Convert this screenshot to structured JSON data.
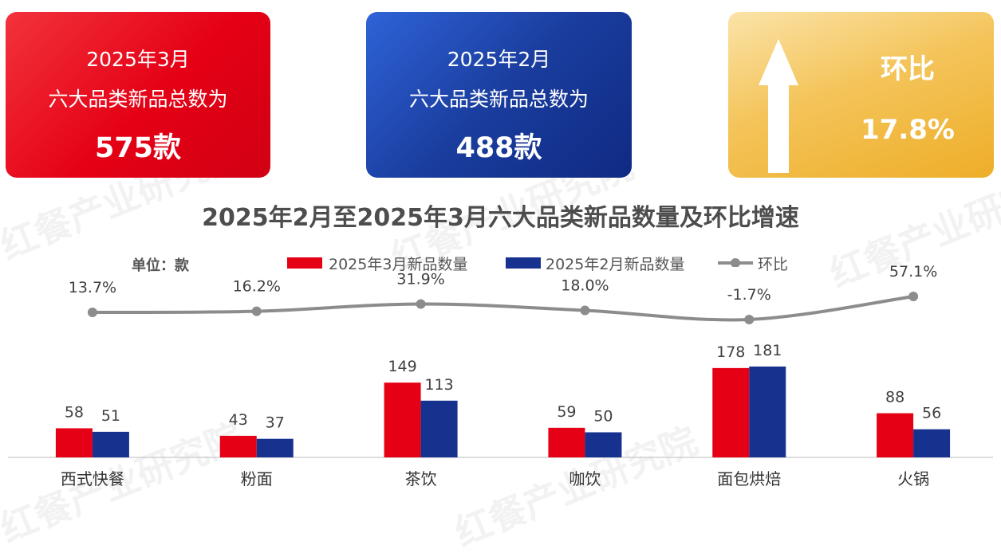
{
  "cards": {
    "march": {
      "line1": "2025年3月",
      "line2": "六大品类新品总数为",
      "line3": "575款"
    },
    "february": {
      "line1": "2025年2月",
      "line2": "六大品类新品总数为",
      "line3": "488款"
    },
    "growth": {
      "label": "环比",
      "value": "17.8%",
      "icon": "up-arrow-icon"
    }
  },
  "watermark": "红餐产业研究院",
  "colors": {
    "march": "#e50015",
    "february": "#17318f",
    "growth_line": "#8c8c8c"
  },
  "chart_data": {
    "type": "bar",
    "title": "2025年2月至2025年3月六大品类新品数量及环比增速",
    "unit_label": "单位：款",
    "categories": [
      "西式快餐",
      "粉面",
      "茶饮",
      "咖饮",
      "面包烘焙",
      "火锅"
    ],
    "series": [
      {
        "name": "2025年3月新品数量",
        "values": [
          58,
          43,
          149,
          59,
          178,
          88
        ],
        "color": "#e50015"
      },
      {
        "name": "2025年2月新品数量",
        "values": [
          51,
          37,
          113,
          50,
          181,
          56
        ],
        "color": "#17318f"
      }
    ],
    "line_series": {
      "name": "环比",
      "values": [
        13.7,
        16.2,
        31.9,
        18.0,
        -1.7,
        57.1
      ],
      "labels": [
        "13.7%",
        "16.2%",
        "31.9%",
        "18.0%",
        "-1.7%",
        "57.1%"
      ],
      "color": "#8c8c8c"
    },
    "grid": false,
    "legend_position": "top"
  }
}
